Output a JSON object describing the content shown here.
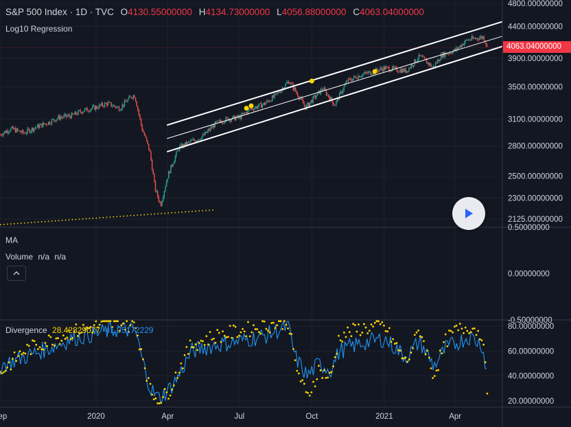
{
  "legend": {
    "symbol": "S&P 500 Index · 1D · TVC",
    "open_key": "O",
    "open_val": "4130.55000000",
    "high_key": "H",
    "high_val": "4134.73000000",
    "low_key": "L",
    "low_val": "4056.88000000",
    "close_key": "C",
    "close_val": "4063.04000000",
    "indicator": "Log10 Regression"
  },
  "panes": {
    "ma_label": "MA",
    "volume_label": "Volume",
    "volume_v1": "n/a",
    "volume_v2": "n/a",
    "divergence_label": "Divergence",
    "divergence_v1": "28.42829077",
    "divergence_v2": "41.05172229"
  },
  "last_price_badge": "4063.04000000",
  "colors": {
    "background": "#131722",
    "up": "#26a69a",
    "down": "#ef5350",
    "channel": "#ffffff",
    "dots": "#ffd600",
    "divergence_line": "#2196f3",
    "badge": "#f23645"
  },
  "icons": {
    "collapse": "chevron-up-icon",
    "play": "play-icon"
  },
  "chart_data": [
    {
      "type": "candlestick",
      "pane": "price",
      "scale": "log",
      "ylim": [
        2060,
        4800
      ],
      "y_ticks": [
        "4800.00000000",
        "4400.00000000",
        "3900.00000000",
        "3500.00000000",
        "3100.00000000",
        "2800.00000000",
        "2500.00000000",
        "2300.00000000",
        "2125.00000000"
      ],
      "y_tick_values": [
        4800,
        4400,
        3900,
        3500,
        3100,
        2800,
        2500,
        2300,
        2125
      ],
      "x_ticks": [
        "Sep",
        "2020",
        "Apr",
        "Jul",
        "Oct",
        "2021",
        "Apr"
      ],
      "x_tick_dates": [
        "2019-09-01",
        "2020-01-01",
        "2020-04-01",
        "2020-07-01",
        "2020-10-01",
        "2021-01-01",
        "2021-04-01"
      ],
      "x_range": [
        "2019-09-01",
        "2021-05-31"
      ],
      "close_series": [
        [
          "2019-09-01",
          2925
        ],
        [
          "2019-09-15",
          2990
        ],
        [
          "2019-10-01",
          2940
        ],
        [
          "2019-10-15",
          3000
        ],
        [
          "2019-11-01",
          3060
        ],
        [
          "2019-11-15",
          3120
        ],
        [
          "2019-12-01",
          3140
        ],
        [
          "2019-12-15",
          3200
        ],
        [
          "2020-01-01",
          3240
        ],
        [
          "2020-01-15",
          3290
        ],
        [
          "2020-01-31",
          3230
        ],
        [
          "2020-02-15",
          3380
        ],
        [
          "2020-02-19",
          3390
        ],
        [
          "2020-02-28",
          3000
        ],
        [
          "2020-03-09",
          2750
        ],
        [
          "2020-03-16",
          2380
        ],
        [
          "2020-03-23",
          2240
        ],
        [
          "2020-04-01",
          2500
        ],
        [
          "2020-04-15",
          2780
        ],
        [
          "2020-05-01",
          2850
        ],
        [
          "2020-05-15",
          2900
        ],
        [
          "2020-06-01",
          3050
        ],
        [
          "2020-06-15",
          3100
        ],
        [
          "2020-07-01",
          3120
        ],
        [
          "2020-07-15",
          3220
        ],
        [
          "2020-08-01",
          3280
        ],
        [
          "2020-08-15",
          3380
        ],
        [
          "2020-09-02",
          3580
        ],
        [
          "2020-09-23",
          3240
        ],
        [
          "2020-10-15",
          3480
        ],
        [
          "2020-10-30",
          3270
        ],
        [
          "2020-11-15",
          3580
        ],
        [
          "2020-12-01",
          3660
        ],
        [
          "2020-12-15",
          3700
        ],
        [
          "2021-01-01",
          3760
        ],
        [
          "2021-01-29",
          3720
        ],
        [
          "2021-02-15",
          3930
        ],
        [
          "2021-03-04",
          3770
        ],
        [
          "2021-03-15",
          3950
        ],
        [
          "2021-04-01",
          4020
        ],
        [
          "2021-04-16",
          4180
        ],
        [
          "2021-05-07",
          4230
        ],
        [
          "2021-05-12",
          4063.04
        ]
      ],
      "regression_channel": {
        "start_date": "2020-03-31",
        "end_date": "2021-05-31",
        "upper": [
          3030,
          4480
        ],
        "middle": [
          2880,
          4240
        ],
        "lower": [
          2740,
          4080
        ]
      },
      "support_line": {
        "start_date": "2019-09-01",
        "end_date": "2020-05-31",
        "values": [
          2080,
          2200
        ]
      },
      "markers": [
        [
          "2020-07-10",
          3230
        ],
        [
          "2020-07-16",
          3260
        ],
        [
          "2020-10-01",
          3580
        ],
        [
          "2020-12-20",
          3710
        ]
      ]
    },
    {
      "type": "line",
      "pane": "volume",
      "ylim": [
        -0.5,
        0.5
      ],
      "y_ticks": [
        "0.50000000",
        "0.00000000",
        "-0.50000000"
      ],
      "y_tick_values": [
        0.5,
        0,
        -0.5
      ]
    },
    {
      "type": "line",
      "pane": "divergence",
      "ylim": [
        15,
        85
      ],
      "y_ticks": [
        "80.00000000",
        "60.00000000",
        "40.00000000",
        "20.00000000"
      ],
      "y_tick_values": [
        80,
        60,
        40,
        20
      ],
      "series": [
        {
          "name": "Divergence",
          "style": "dots",
          "color": "#ffd600"
        },
        {
          "name": "",
          "style": "line",
          "color": "#2196f3"
        }
      ],
      "x": [
        "2019-09-01",
        "2019-10-01",
        "2019-11-01",
        "2019-12-01",
        "2020-01-01",
        "2020-02-01",
        "2020-02-20",
        "2020-03-01",
        "2020-03-10",
        "2020-03-20",
        "2020-04-01",
        "2020-04-15",
        "2020-05-01",
        "2020-06-01",
        "2020-07-01",
        "2020-08-01",
        "2020-09-01",
        "2020-09-10",
        "2020-09-25",
        "2020-10-10",
        "2020-10-25",
        "2020-11-05",
        "2020-12-01",
        "2021-01-01",
        "2021-01-29",
        "2021-02-15",
        "2021-03-05",
        "2021-03-20",
        "2021-04-01",
        "2021-04-20",
        "2021-05-05",
        "2021-05-12"
      ],
      "line_values": [
        48,
        55,
        62,
        70,
        74,
        78,
        76,
        50,
        30,
        22,
        28,
        40,
        60,
        65,
        68,
        72,
        80,
        55,
        40,
        50,
        45,
        60,
        66,
        70,
        55,
        68,
        48,
        62,
        66,
        72,
        65,
        41
      ],
      "dot_values": [
        42,
        60,
        68,
        75,
        80,
        82,
        80,
        55,
        28,
        20,
        26,
        45,
        65,
        72,
        76,
        80,
        84,
        50,
        22,
        45,
        38,
        72,
        78,
        80,
        50,
        78,
        40,
        68,
        76,
        80,
        74,
        28
      ]
    }
  ]
}
